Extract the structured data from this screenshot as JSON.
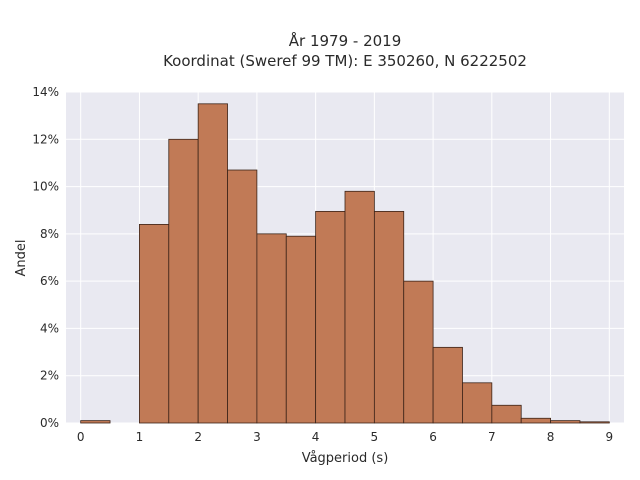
{
  "chart_data": {
    "type": "bar",
    "title_line1": "År 1979 - 2019",
    "title_line2": "Koordinat (Sweref 99 TM): E 350260, N 6222502",
    "xlabel": "Vågperiod (s)",
    "ylabel": "Andel",
    "xlim": [
      -0.25,
      9.25
    ],
    "ylim": [
      0,
      14
    ],
    "x_ticks": [
      0,
      1,
      2,
      3,
      4,
      5,
      6,
      7,
      8,
      9
    ],
    "y_ticks": [
      0,
      2,
      4,
      6,
      8,
      10,
      12,
      14
    ],
    "y_tick_labels": [
      "0%",
      "2%",
      "4%",
      "6%",
      "8%",
      "10%",
      "12%",
      "14%"
    ],
    "bin_width": 0.5,
    "bins": [
      {
        "start": 0.0,
        "value": 0.1
      },
      {
        "start": 1.0,
        "value": 8.4
      },
      {
        "start": 1.5,
        "value": 12.0
      },
      {
        "start": 2.0,
        "value": 13.5
      },
      {
        "start": 2.5,
        "value": 10.7
      },
      {
        "start": 3.0,
        "value": 8.0
      },
      {
        "start": 3.5,
        "value": 7.9
      },
      {
        "start": 4.0,
        "value": 8.95
      },
      {
        "start": 4.5,
        "value": 9.8
      },
      {
        "start": 5.0,
        "value": 8.95
      },
      {
        "start": 5.5,
        "value": 6.0
      },
      {
        "start": 6.0,
        "value": 3.2
      },
      {
        "start": 6.5,
        "value": 1.7
      },
      {
        "start": 7.0,
        "value": 0.75
      },
      {
        "start": 7.5,
        "value": 0.2
      },
      {
        "start": 8.0,
        "value": 0.1
      },
      {
        "start": 8.5,
        "value": 0.05
      }
    ],
    "grid": true,
    "colors": {
      "bar_fill": "#c17a56",
      "bar_stroke": "#3b2318",
      "plot_background": "#e9e9f1",
      "grid": "#ffffff"
    }
  }
}
